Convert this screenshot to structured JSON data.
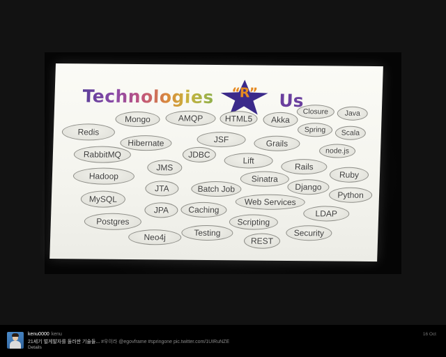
{
  "slide": {
    "title": {
      "technologies": "Technologies",
      "star_text": "“R”",
      "us": "Us"
    },
    "bubbles": [
      {
        "label": "Mongo"
      },
      {
        "label": "AMQP"
      },
      {
        "label": "HTML5"
      },
      {
        "label": "Akka"
      },
      {
        "label": "Closure"
      },
      {
        "label": "Java"
      },
      {
        "label": "Redis"
      },
      {
        "label": "JSF"
      },
      {
        "label": "Spring"
      },
      {
        "label": "Scala"
      },
      {
        "label": "Hibernate"
      },
      {
        "label": "Grails"
      },
      {
        "label": "node.js"
      },
      {
        "label": "RabbitMQ"
      },
      {
        "label": "JDBC"
      },
      {
        "label": "Lift"
      },
      {
        "label": "Rails"
      },
      {
        "label": "JMS"
      },
      {
        "label": "Ruby"
      },
      {
        "label": "Hadoop"
      },
      {
        "label": "Sinatra"
      },
      {
        "label": "Django"
      },
      {
        "label": "JTA"
      },
      {
        "label": "Batch Job"
      },
      {
        "label": "Python"
      },
      {
        "label": "MySQL"
      },
      {
        "label": "Web Services"
      },
      {
        "label": "Caching"
      },
      {
        "label": "JPA"
      },
      {
        "label": "LDAP"
      },
      {
        "label": "Postgres"
      },
      {
        "label": "Scripting"
      },
      {
        "label": "Testing"
      },
      {
        "label": "Security"
      },
      {
        "label": "Neo4j"
      },
      {
        "label": "REST"
      }
    ]
  },
  "tweet": {
    "username": "kenu0000",
    "handle": "kenu",
    "text": "21세기 벌게발자를 둘러싼 기술들... ",
    "hashtags": "#우이라 @egovframe #springone pic.twitter.com/1UIRuNZE",
    "details_label": "Details",
    "date": "16 Oct"
  },
  "colors": {
    "star": "#3b2a8a",
    "star_text": "#e58a22",
    "us": "#6a3f9e"
  }
}
